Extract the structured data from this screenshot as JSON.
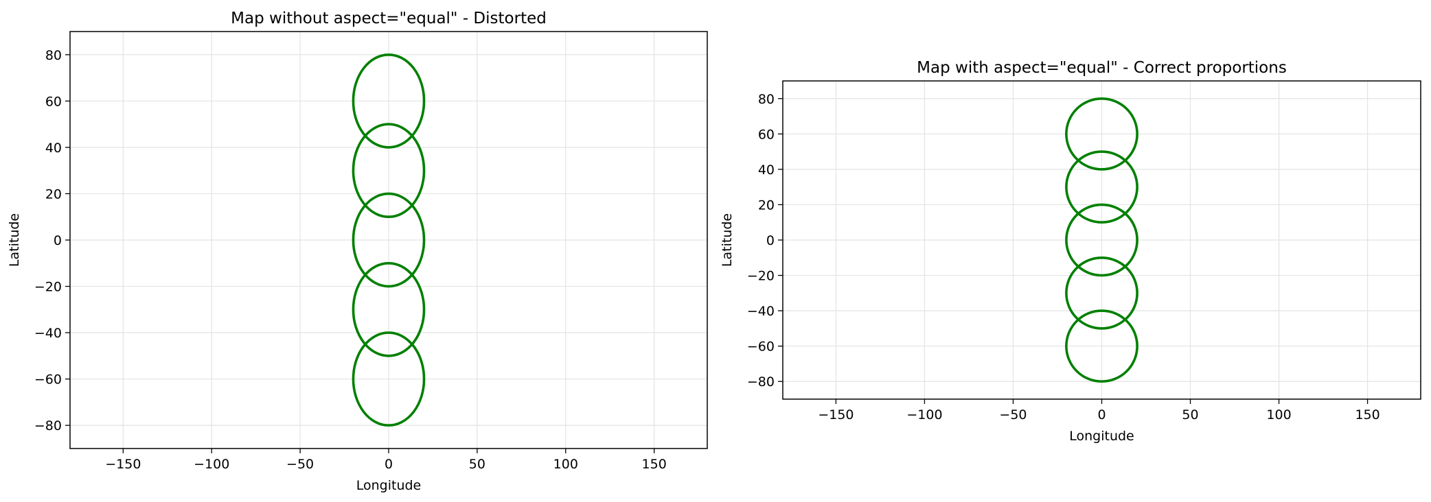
{
  "chart_data": [
    {
      "type": "line",
      "title": "Map without aspect=\"equal\" - Distorted",
      "xlabel": "Longitude",
      "ylabel": "Latitude",
      "xlim": [
        -180,
        180
      ],
      "ylim": [
        -90,
        90
      ],
      "xticks": [
        -150,
        -100,
        -50,
        0,
        50,
        100,
        150
      ],
      "yticks": [
        -80,
        -60,
        -40,
        -20,
        0,
        20,
        40,
        60,
        80
      ],
      "grid": true,
      "aspect": "auto",
      "series": [
        {
          "center": [
            0,
            60
          ],
          "radius": 20
        },
        {
          "center": [
            0,
            30
          ],
          "radius": 20
        },
        {
          "center": [
            0,
            0
          ],
          "radius": 20
        },
        {
          "center": [
            0,
            -30
          ],
          "radius": 20
        },
        {
          "center": [
            0,
            -60
          ],
          "radius": 20
        }
      ]
    },
    {
      "type": "line",
      "title": "Map with aspect=\"equal\" - Correct proportions",
      "xlabel": "Longitude",
      "ylabel": "Latitude",
      "xlim": [
        -180,
        180
      ],
      "ylim": [
        -90,
        90
      ],
      "xticks": [
        -150,
        -100,
        -50,
        0,
        50,
        100,
        150
      ],
      "yticks": [
        -80,
        -60,
        -40,
        -20,
        0,
        20,
        40,
        60,
        80
      ],
      "grid": true,
      "aspect": "equal",
      "series": [
        {
          "center": [
            0,
            60
          ],
          "radius": 20
        },
        {
          "center": [
            0,
            30
          ],
          "radius": 20
        },
        {
          "center": [
            0,
            0
          ],
          "radius": 20
        },
        {
          "center": [
            0,
            -30
          ],
          "radius": 20
        },
        {
          "center": [
            0,
            -60
          ],
          "radius": 20
        }
      ]
    }
  ],
  "colors": {
    "series": "#008000",
    "grid": "#e3e3e3",
    "axes": "#000000"
  }
}
